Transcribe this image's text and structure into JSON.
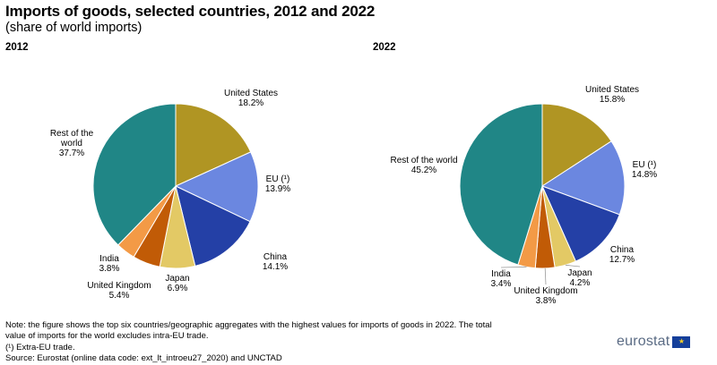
{
  "header": {
    "title": "Imports of goods, selected countries, 2012 and 2022",
    "subtitle": "(share of world imports)"
  },
  "chart_data": [
    {
      "type": "pie",
      "title": "2012",
      "unit": "%",
      "slices": [
        {
          "label": "United States",
          "value": 18.2,
          "value_text": "18.2%",
          "color": "#b09523"
        },
        {
          "label": "EU (¹)",
          "value": 13.9,
          "value_text": "13.9%",
          "color": "#6b87e0"
        },
        {
          "label": "China",
          "value": 14.1,
          "value_text": "14.1%",
          "color": "#2440a6"
        },
        {
          "label": "Japan",
          "value": 6.9,
          "value_text": "6.9%",
          "color": "#e3c965"
        },
        {
          "label": "United Kingdom",
          "value": 5.4,
          "value_text": "5.4%",
          "color": "#c15b06"
        },
        {
          "label": "India",
          "value": 3.8,
          "value_text": "3.8%",
          "color": "#f39a46"
        },
        {
          "label": "Rest of the world",
          "value": 37.7,
          "value_text": "37.7%",
          "color": "#208686"
        }
      ]
    },
    {
      "type": "pie",
      "title": "2022",
      "unit": "%",
      "slices": [
        {
          "label": "United States",
          "value": 15.8,
          "value_text": "15.8%",
          "color": "#b09523"
        },
        {
          "label": "EU (¹)",
          "value": 14.8,
          "value_text": "14.8%",
          "color": "#6b87e0"
        },
        {
          "label": "China",
          "value": 12.7,
          "value_text": "12.7%",
          "color": "#2440a6"
        },
        {
          "label": "Japan",
          "value": 4.2,
          "value_text": "4.2%",
          "color": "#e3c965"
        },
        {
          "label": "United Kingdom",
          "value": 3.8,
          "value_text": "3.8%",
          "color": "#c15b06"
        },
        {
          "label": "India",
          "value": 3.4,
          "value_text": "3.4%",
          "color": "#f39a46"
        },
        {
          "label": "Rest of the world",
          "value": 45.2,
          "value_text": "45.2%",
          "color": "#208686"
        }
      ]
    }
  ],
  "notes": {
    "line1": "Note: the figure shows the top six countries/geographic aggregates with the highest values for imports of goods in 2022. The total",
    "line2": "value of imports for the world excludes intra-EU trade.",
    "line3": "(¹) Extra-EU trade.",
    "line4": "Source: Eurostat (online data code: ext_lt_introeu27_2020) and UNCTAD"
  },
  "brand": {
    "name": "eurostat",
    "flag_color": "#153f9a",
    "flag_star_color": "#f5cf2a"
  }
}
